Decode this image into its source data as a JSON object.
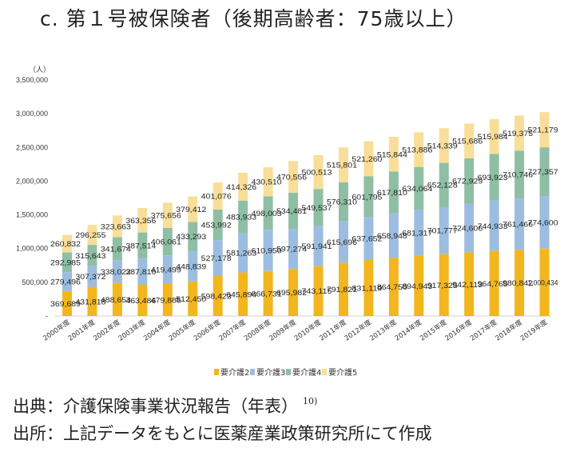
{
  "title": "c.  第１号被保険者（後期高齢者：75歳以上）",
  "source_line1": "出典：介護保険事業状況報告（年表）",
  "source_ref": "10)",
  "source_line2": "出所：上記データをもとに医薬産業政策研究所にて作成",
  "chart_data": {
    "type": "bar",
    "stacked": true,
    "title": "",
    "ylabel": "（人）",
    "ylim": [
      0,
      3500000
    ],
    "yticks": [
      0,
      500000,
      1000000,
      1500000,
      2000000,
      2500000,
      3000000,
      3500000
    ],
    "ytick_labels": [
      "-",
      "500,000",
      "1,000,000",
      "1,500,000",
      "2,000,000",
      "2,500,000",
      "3,000,000",
      "3,500,000"
    ],
    "grid": false,
    "legend_position": "bottom",
    "categories": [
      "2000年度",
      "2001年度",
      "2002年度",
      "2003年度",
      "2004年度",
      "2005年度",
      "2006年度",
      "2007年度",
      "2008年度",
      "2009年度",
      "2010年度",
      "2011年度",
      "2012年度",
      "2013年度",
      "2014年度",
      "2015年度",
      "2016年度",
      "2017年度",
      "2018年度",
      "2019年度"
    ],
    "series": [
      {
        "name": "要介護2",
        "color": "#F2B61E",
        "values": [
          369689,
          431818,
          488653,
          463486,
          479885,
          512450,
          598423,
          645894,
          666731,
          695982,
          743115,
          791821,
          831119,
          864750,
          894943,
          917325,
          942113,
          964765,
          980842,
          1000434
        ]
      },
      {
        "name": "要介護3",
        "color": "#9DBDE0",
        "values": [
          279496,
          307372,
          338022,
          387810,
          419499,
          448839,
          527178,
          581263,
          610950,
          597274,
          591941,
          615696,
          637652,
          658948,
          681317,
          701777,
          724606,
          744933,
          761466,
          774600
        ]
      },
      {
        "name": "要介護4",
        "color": "#8EBFA4",
        "values": [
          292985,
          315643,
          341674,
          387514,
          406061,
          433293,
          453992,
          483933,
          498003,
          534481,
          549537,
          576310,
          601795,
          617810,
          634064,
          652128,
          672929,
          693923,
          710746,
          727357
        ]
      },
      {
        "name": "要介護5",
        "color": "#F8DE98",
        "values": [
          260832,
          296255,
          323663,
          363356,
          375656,
          379412,
          401076,
          414326,
          430510,
          470556,
          500513,
          515801,
          521260,
          515844,
          513886,
          514339,
          515686,
          515984,
          519375,
          521179
        ]
      }
    ]
  }
}
